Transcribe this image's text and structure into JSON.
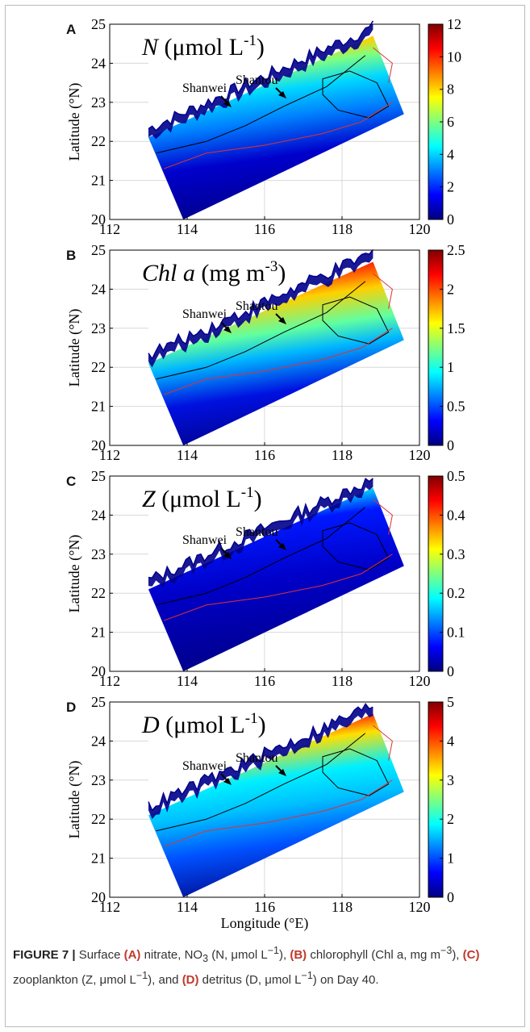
{
  "colors": {
    "colormap_stops": [
      "#00007f",
      "#0000ff",
      "#007fff",
      "#00ffff",
      "#7fff7f",
      "#ffff00",
      "#ff7f00",
      "#ff0000",
      "#7f0000"
    ],
    "coast_land": "#00008b",
    "contour_black": "#000000",
    "contour_red": "#dd3333",
    "caption_label": "#c0392b"
  },
  "axes": {
    "x_ticks": [
      "112",
      "114",
      "116",
      "118",
      "120"
    ],
    "y_ticks": [
      "25",
      "24",
      "23",
      "22",
      "21",
      "20"
    ],
    "x_label": "Longitude (°E)",
    "y_label": "Latitude (°N)"
  },
  "panels": [
    {
      "letter": "A",
      "title_var": "N",
      "title_unit": " (μmol L",
      "title_exp": "-1",
      "title_close": ")",
      "label_shanwei": "Shanwei",
      "label_shantou": "Shantou",
      "colorbar_ticks": [
        "12",
        "10",
        "8",
        "6",
        "4",
        "2",
        "0"
      ]
    },
    {
      "letter": "B",
      "title_var": "Chl a",
      "title_unit": " (mg m",
      "title_exp": "-3",
      "title_close": ")",
      "label_shanwei": "Shanwei",
      "label_shantou": "Shantou",
      "colorbar_ticks": [
        "2.5",
        "2",
        "1.5",
        "1",
        "0.5",
        "0"
      ]
    },
    {
      "letter": "C",
      "title_var": "Z",
      "title_unit": " (μmol L",
      "title_exp": "-1",
      "title_close": ")",
      "label_shanwei": "Shanwei",
      "label_shantou": "Shantou",
      "colorbar_ticks": [
        "0.5",
        "0.4",
        "0.3",
        "0.2",
        "0.1",
        "0"
      ]
    },
    {
      "letter": "D",
      "title_var": "D",
      "title_unit": " (μmol L",
      "title_exp": "-1",
      "title_close": ")",
      "label_shanwei": "Shanwei",
      "label_shantou": "Shantou",
      "colorbar_ticks": [
        "5",
        "4",
        "3",
        "2",
        "1",
        "0"
      ]
    }
  ],
  "caption": {
    "figure_label": "FIGURE 7 |",
    "text_1": " Surface ",
    "a": "(A)",
    "text_2": " nitrate, NO",
    "sub3": "3",
    "text_3": " (N, μmol L",
    "exp1": "−1",
    "text_4": "), ",
    "b": "(B)",
    "text_5": " chlorophyll (Chl a, mg m",
    "exp3": "−3",
    "text_6": "), ",
    "c": "(C)",
    "text_7": " zooplankton (Z, μmol L",
    "exp1b": "−1",
    "text_8": "), and ",
    "d": "(D)",
    "text_9": " detritus (D, μmol L",
    "exp1c": "−1",
    "text_10": ") on Day 40."
  }
}
